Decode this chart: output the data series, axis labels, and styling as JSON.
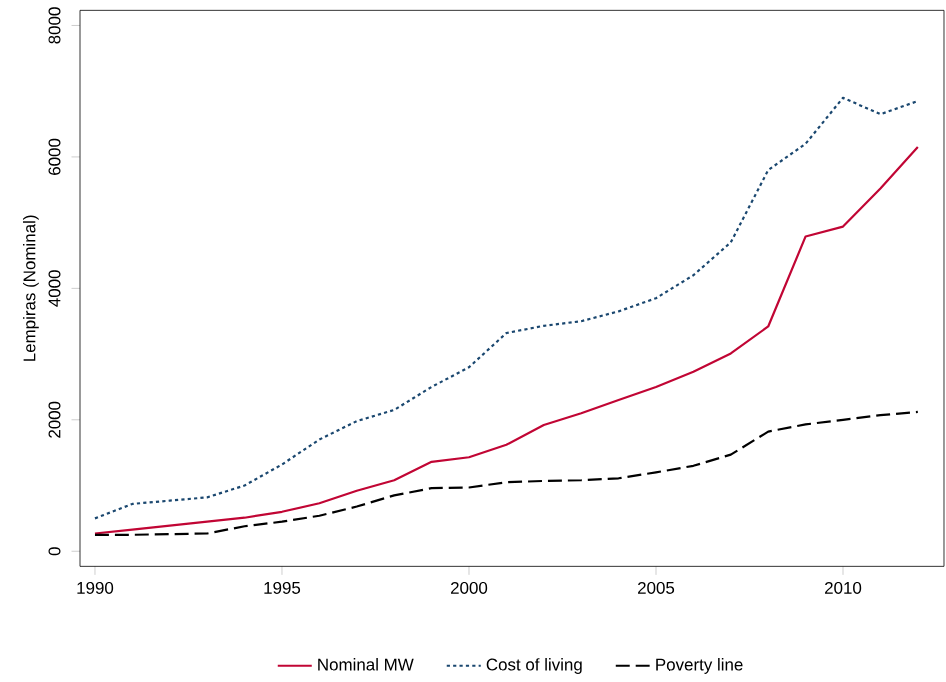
{
  "chart_data": {
    "type": "line",
    "ylabel": "Lempiras (Nominal)",
    "x": [
      1990,
      1991,
      1992,
      1993,
      1994,
      1995,
      1996,
      1997,
      1998,
      1999,
      2000,
      2001,
      2002,
      2003,
      2004,
      2005,
      2006,
      2007,
      2008,
      2009,
      2010,
      2011,
      2012
    ],
    "series": [
      {
        "name": "Nominal MW",
        "color": "#c10534",
        "line_style": "solid",
        "values": [
          270,
          330,
          390,
          450,
          510,
          600,
          730,
          920,
          1080,
          1360,
          1430,
          1620,
          1920,
          2100,
          2300,
          2500,
          2730,
          3010,
          3420,
          4790,
          4940,
          5520,
          6150
        ]
      },
      {
        "name": "Cost of living",
        "color": "#1a476f",
        "line_style": "dotted",
        "values": [
          500,
          720,
          770,
          820,
          1000,
          1320,
          1700,
          1980,
          2150,
          2500,
          2800,
          3320,
          3430,
          3500,
          3650,
          3850,
          4200,
          4700,
          5800,
          6200,
          6900,
          6650,
          6850
        ]
      },
      {
        "name": "Poverty line",
        "color": "#000000",
        "line_style": "dashed",
        "values": [
          250,
          250,
          260,
          270,
          380,
          450,
          540,
          680,
          850,
          960,
          970,
          1050,
          1070,
          1080,
          1110,
          1200,
          1300,
          1470,
          1820,
          1930,
          2000,
          2070,
          2120
        ]
      }
    ],
    "xlim": [
      1989.6,
      2012.7
    ],
    "ylim": [
      -230,
      8230
    ],
    "xticks": [
      1990,
      1995,
      2000,
      2005,
      2010
    ],
    "yticks": [
      0,
      2000,
      4000,
      6000,
      8000
    ],
    "grid": false,
    "legend": "bottom",
    "marker": "none"
  }
}
